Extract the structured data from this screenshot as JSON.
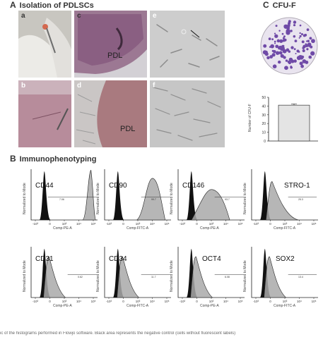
{
  "panel_a": {
    "letter": "A",
    "title": "Isolation of PDLSCs",
    "tiles": [
      {
        "label": "a",
        "pdl": ""
      },
      {
        "label": "c",
        "pdl": "PDL"
      },
      {
        "label": "e",
        "pdl": ""
      },
      {
        "label": "b",
        "pdl": ""
      },
      {
        "label": "d",
        "pdl": "PDL"
      },
      {
        "label": "f",
        "pdl": ""
      }
    ]
  },
  "panel_c": {
    "letter": "C",
    "title": "CFU-F",
    "chart_data": {
      "type": "bar",
      "categories": [
        ""
      ],
      "values": [
        41
      ],
      "error": 1.5,
      "ylabel": "Number of CFU-F",
      "ylim": [
        0,
        50
      ],
      "yticks": [
        "0",
        "10",
        "20",
        "30",
        "40",
        "50"
      ]
    }
  },
  "panel_b": {
    "letter": "B",
    "title": "Immunophenotyping",
    "chart_data": [
      {
        "type": "histogram",
        "marker": "CD44",
        "xlabel": "Comp-PE-A",
        "ylabel": "Normalized to Mode",
        "percent": "7.06",
        "peak": 0.98
      },
      {
        "type": "histogram",
        "marker": "CD90",
        "xlabel": "Comp-FITC-A",
        "ylabel": "Normalized to Mode",
        "percent": "99.7",
        "peak": 0.82
      },
      {
        "type": "histogram",
        "marker": "CD146",
        "xlabel": "Comp-PE-A",
        "ylabel": "Normalized to Mode",
        "percent": "93.7",
        "peak": 0.6
      },
      {
        "type": "histogram",
        "marker": "STRO-1",
        "xlabel": "Comp-FITC-A",
        "ylabel": "Normalized to Mode",
        "percent": "25.3",
        "peak": 0.18
      },
      {
        "type": "histogram",
        "marker": "CD31",
        "xlabel": "Comp-PE-A",
        "ylabel": "Normalized to Mode",
        "percent": "0.62",
        "peak": 0.55
      },
      {
        "type": "histogram",
        "marker": "CD34",
        "xlabel": "Comp-FITC-A",
        "ylabel": "Normalized to Mode",
        "percent": "11.7",
        "peak": 0.55
      },
      {
        "type": "histogram",
        "marker": "OCT4",
        "xlabel": "Comp-PE-A",
        "ylabel": "Normalized to Mode",
        "percent": "6.08",
        "peak": 0.55
      },
      {
        "type": "histogram",
        "marker": "SOX2",
        "xlabel": "Comp-FITC-A",
        "ylabel": "Normalized to Mode",
        "percent": "13.4",
        "peak": 0.55
      }
    ],
    "xticks": [
      "-10³",
      "0",
      "10³",
      "10⁴",
      "10⁵"
    ]
  },
  "caption": "ic of the histograms performed in Flowjo software. Black area represents the negative control (cells without fluorescent labels)"
}
